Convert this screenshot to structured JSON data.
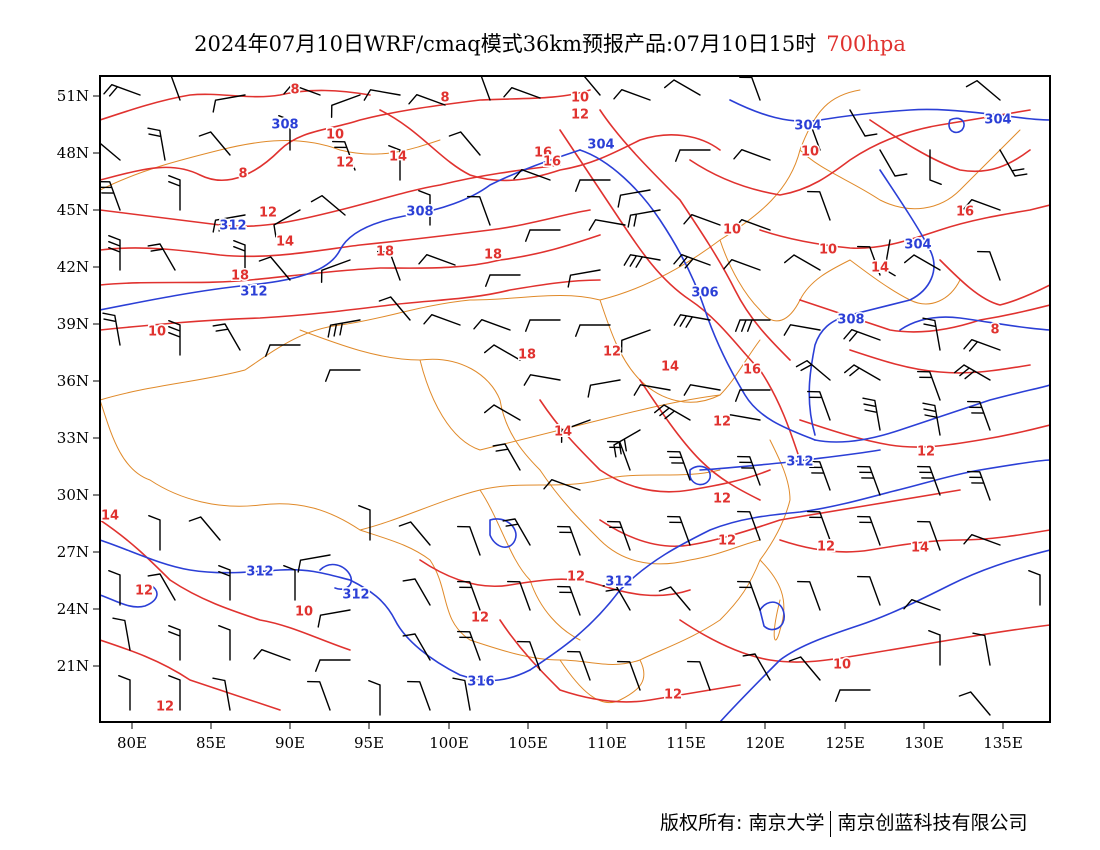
{
  "title": {
    "text": "2024年07月10日WRF/cmaq模式36km预报产品:07月10日15时",
    "level": "700hpa"
  },
  "axes": {
    "lon_labels": [
      "80E",
      "85E",
      "90E",
      "95E",
      "100E",
      "105E",
      "110E",
      "115E",
      "120E",
      "125E",
      "130E",
      "135E"
    ],
    "lat_labels": [
      "51N",
      "48N",
      "45N",
      "42N",
      "39N",
      "36N",
      "33N",
      "30N",
      "27N",
      "24N",
      "21N"
    ]
  },
  "contours": {
    "height_labels": [
      "308",
      "304",
      "308",
      "312",
      "312",
      "306",
      "304",
      "304",
      "304",
      "308",
      "312",
      "312",
      "312",
      "312",
      "316"
    ],
    "temp_labels": [
      "8",
      "8",
      "10",
      "12",
      "14",
      "16",
      "10",
      "12",
      "8",
      "10",
      "12",
      "14",
      "18",
      "18",
      "16",
      "10",
      "10",
      "14",
      "16",
      "18",
      "10",
      "18",
      "14",
      "12",
      "16",
      "8",
      "12",
      "14",
      "12",
      "12",
      "14",
      "12",
      "10",
      "12",
      "12",
      "12",
      "14",
      "12",
      "10",
      "12",
      "12"
    ]
  },
  "colors": {
    "height": "#2b3fd6",
    "temperature": "#e0322f",
    "border": "#e08a2a",
    "wind": "#000000",
    "frame": "#000000"
  },
  "footer": {
    "copyright": "版权所有: 南京大学",
    "company": "南京创蓝科技有限公司"
  }
}
